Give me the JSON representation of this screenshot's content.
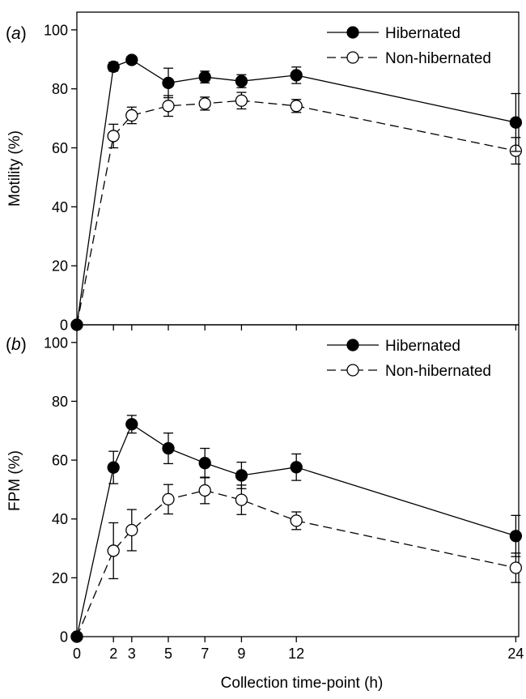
{
  "chart_data": [
    {
      "type": "line",
      "panel_label": "(a)",
      "title": "",
      "xlabel": "",
      "ylabel": "Motility (%)",
      "xlim": [
        0,
        25.3
      ],
      "ylim": [
        0,
        106
      ],
      "xticks": [
        0,
        2,
        3,
        5,
        7,
        9,
        12,
        24
      ],
      "yticks": [
        0,
        20,
        40,
        60,
        80,
        100
      ],
      "show_x_tick_labels": false,
      "grid": false,
      "legend": "top-right",
      "x": [
        0,
        2,
        3,
        5,
        7,
        9,
        12,
        24
      ],
      "series": [
        {
          "name": "Hibernated",
          "marker": "filled-circle",
          "line": "solid",
          "values": [
            0,
            87.5,
            89.8,
            82,
            84,
            82.6,
            84.6,
            68.6
          ],
          "error": [
            0,
            1.5,
            1.2,
            5,
            2,
            2.2,
            2.8,
            9.8
          ]
        },
        {
          "name": "Non-hibernated",
          "marker": "open-circle",
          "line": "dashed",
          "values": [
            0,
            64,
            71,
            74.2,
            75,
            76,
            74.2,
            59
          ],
          "error": [
            0,
            4,
            2.8,
            3.5,
            2.2,
            2.8,
            2.2,
            4.5
          ]
        }
      ]
    },
    {
      "type": "line",
      "panel_label": "(b)",
      "title": "",
      "xlabel": "Collection time-point (h)",
      "ylabel": "FPM (%)",
      "xlim": [
        0,
        25.3
      ],
      "ylim": [
        0,
        106
      ],
      "xticks": [
        0,
        2,
        3,
        5,
        7,
        9,
        12,
        24
      ],
      "yticks": [
        0,
        20,
        40,
        60,
        80,
        100
      ],
      "show_x_tick_labels": true,
      "grid": false,
      "legend": "top-right",
      "x": [
        0,
        2,
        3,
        5,
        7,
        9,
        12,
        24
      ],
      "series": [
        {
          "name": "Hibernated",
          "marker": "filled-circle",
          "line": "solid",
          "values": [
            0,
            57.5,
            72.2,
            64,
            59,
            54.8,
            57.6,
            34.2
          ],
          "error": [
            0,
            5.5,
            3,
            5.2,
            5,
            4.5,
            4.5,
            7
          ]
        },
        {
          "name": "Non-hibernated",
          "marker": "open-circle",
          "line": "dashed",
          "values": [
            0,
            29.2,
            36.2,
            46.7,
            49.7,
            46.5,
            39.4,
            23.4
          ],
          "error": [
            0,
            9.5,
            7,
            5,
            4.5,
            5,
            3,
            5
          ]
        }
      ]
    }
  ]
}
